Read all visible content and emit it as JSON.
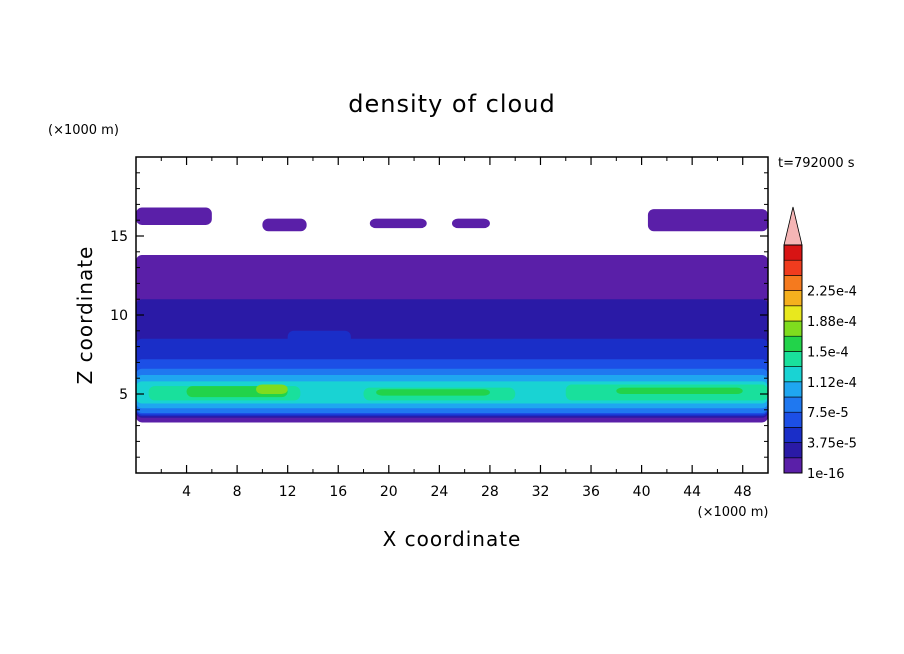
{
  "chart_data": {
    "type": "heatmap",
    "title": "density of cloud",
    "xlabel": "X coordinate",
    "ylabel": "Z coordinate",
    "x_unit": "(×1000 m)",
    "y_unit": "(×1000 m)",
    "time_label": "t=792000 s",
    "xlim": [
      0,
      50
    ],
    "ylim": [
      0,
      20
    ],
    "xticks": [
      4,
      8,
      12,
      16,
      20,
      24,
      28,
      32,
      36,
      40,
      44,
      48
    ],
    "yticks": [
      5,
      10,
      15
    ],
    "colorbar": {
      "levels": [
        1e-16,
        1.875e-05,
        3.75e-05,
        5.625e-05,
        7.5e-05,
        9.375e-05,
        0.000112,
        0.000131,
        0.00015,
        0.000169,
        0.000188,
        0.000206,
        0.000225,
        0.000244
      ],
      "colors": [
        "#5a1fa8",
        "#2a1aa6",
        "#1a2ec8",
        "#1c4fe6",
        "#1f78f0",
        "#1fa6f0",
        "#19d3d3",
        "#19e09c",
        "#22d34a",
        "#7fdc1e",
        "#e8e81e",
        "#f5b01e",
        "#f57a1e",
        "#f03c1e",
        "#d81414"
      ],
      "over_color": "#f5b5b5",
      "labels": [
        "1e-16",
        "3.75e-5",
        "7.5e-5",
        "1.12e-4",
        "1.5e-4",
        "1.88e-4",
        "2.25e-4"
      ]
    },
    "regions": [
      {
        "x": [
          0,
          6
        ],
        "z": [
          15.7,
          16.8
        ],
        "level": 1e-16
      },
      {
        "x": [
          10,
          13.5
        ],
        "z": [
          15.3,
          16.1
        ],
        "level": 1e-16
      },
      {
        "x": [
          18.5,
          23
        ],
        "z": [
          15.5,
          16.1
        ],
        "level": 1e-16
      },
      {
        "x": [
          25,
          28
        ],
        "z": [
          15.5,
          16.1
        ],
        "level": 1e-16
      },
      {
        "x": [
          40.5,
          50
        ],
        "z": [
          15.3,
          16.7
        ],
        "level": 1e-16
      },
      {
        "x": [
          0,
          50
        ],
        "z": [
          3.2,
          13.8
        ],
        "level": 1e-16
      },
      {
        "x": [
          0,
          50
        ],
        "z": [
          3.5,
          11.0
        ],
        "level": 1.875e-05
      },
      {
        "x": [
          0,
          50
        ],
        "z": [
          3.6,
          8.5
        ],
        "level": 3.75e-05
      },
      {
        "x": [
          12,
          17
        ],
        "z": [
          4.5,
          9.0
        ],
        "level": 3.75e-05
      },
      {
        "x": [
          30,
          35
        ],
        "z": [
          4.5,
          8.2
        ],
        "level": 3.75e-05
      },
      {
        "x": [
          0,
          50
        ],
        "z": [
          3.7,
          7.2
        ],
        "level": 5.625e-05
      },
      {
        "x": [
          0,
          50
        ],
        "z": [
          3.8,
          6.6
        ],
        "level": 7.5e-05
      },
      {
        "x": [
          0,
          50
        ],
        "z": [
          4.1,
          6.2
        ],
        "level": 9.375e-05
      },
      {
        "x": [
          0,
          50
        ],
        "z": [
          4.4,
          5.8
        ],
        "level": 0.000112
      },
      {
        "x": [
          1,
          13
        ],
        "z": [
          4.6,
          5.5
        ],
        "level": 0.000131
      },
      {
        "x": [
          18,
          30
        ],
        "z": [
          4.6,
          5.4
        ],
        "level": 0.000131
      },
      {
        "x": [
          34,
          50
        ],
        "z": [
          4.6,
          5.6
        ],
        "level": 0.000131
      },
      {
        "x": [
          4,
          12
        ],
        "z": [
          4.8,
          5.5
        ],
        "level": 0.00015
      },
      {
        "x": [
          19,
          28
        ],
        "z": [
          4.9,
          5.3
        ],
        "level": 0.00015
      },
      {
        "x": [
          38,
          48
        ],
        "z": [
          5.0,
          5.4
        ],
        "level": 0.00015
      },
      {
        "x": [
          9.5,
          12
        ],
        "z": [
          5.0,
          5.6
        ],
        "level": 0.000169
      }
    ]
  }
}
